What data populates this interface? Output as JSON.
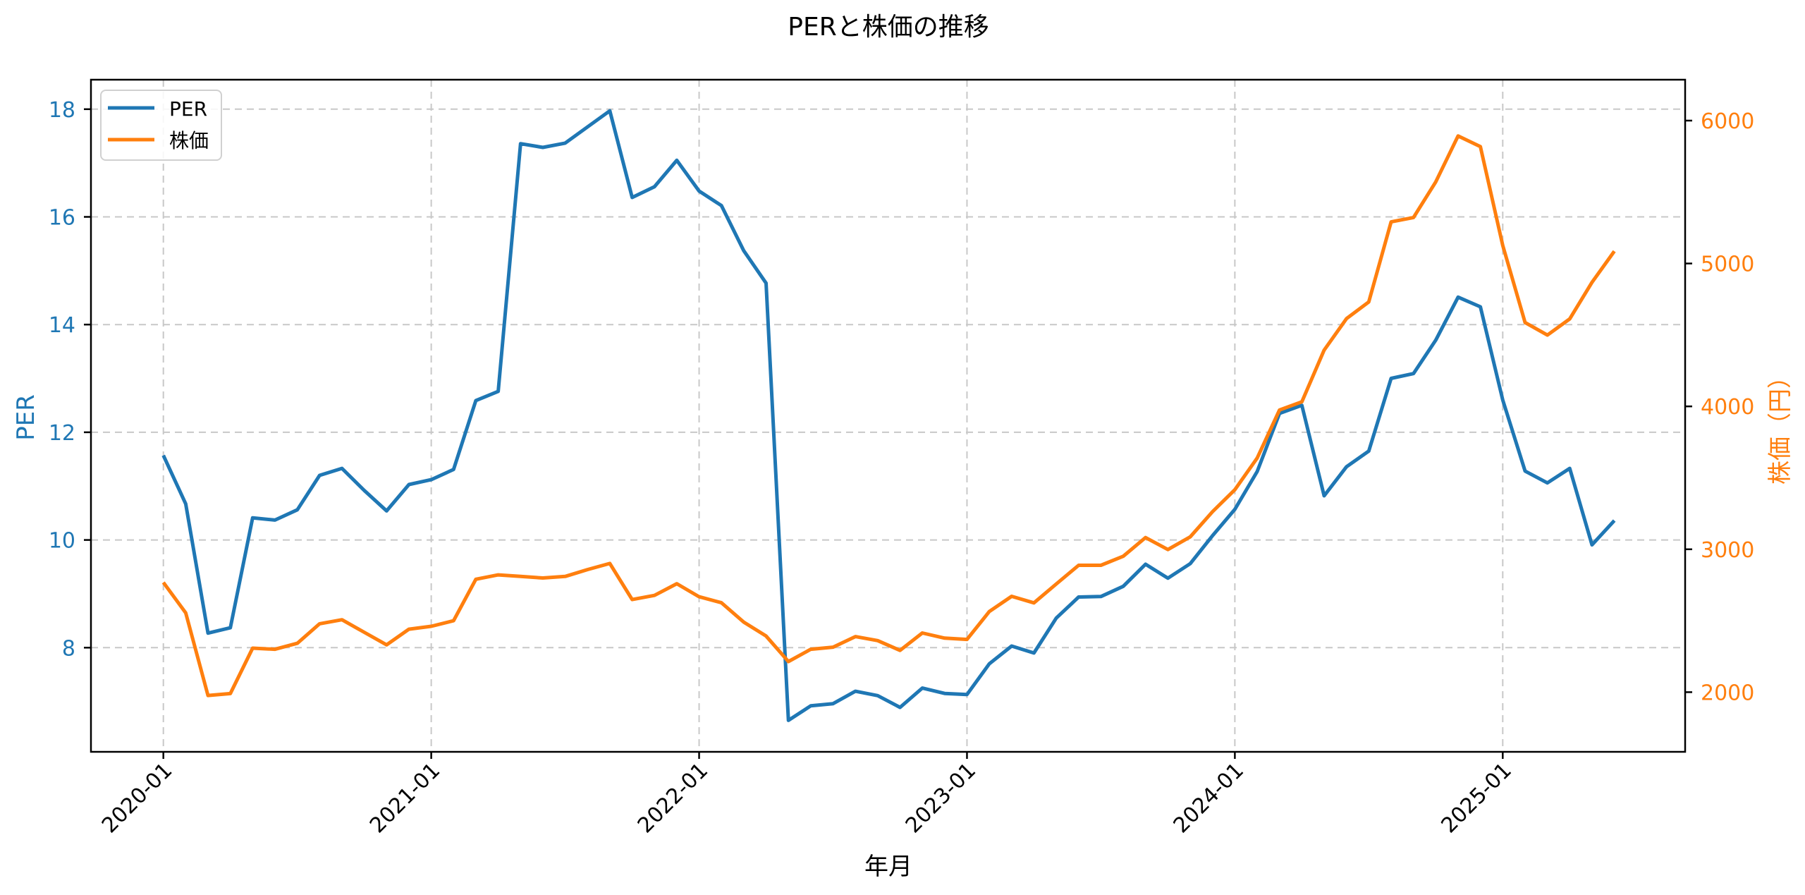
{
  "chart_data": {
    "type": "line",
    "title": "PERと株価の推移",
    "xlabel": "年月",
    "ylabel": "PER",
    "y2label": "株価（円）",
    "x_tick_labels": [
      "2020-01",
      "2021-01",
      "2022-01",
      "2023-01",
      "2024-01",
      "2025-01"
    ],
    "y_ticks": [
      8,
      10,
      12,
      14,
      16,
      18
    ],
    "y2_ticks": [
      2000,
      3000,
      4000,
      5000,
      6000
    ],
    "ylim": [
      6.15,
      18.5
    ],
    "y2lim": [
      1560,
      6290
    ],
    "grid": true,
    "legend_position": "upper left",
    "x": [
      "2020-01",
      "2020-02",
      "2020-03",
      "2020-04",
      "2020-05",
      "2020-06",
      "2020-07",
      "2020-08",
      "2020-09",
      "2020-10",
      "2020-11",
      "2020-12",
      "2021-01",
      "2021-02",
      "2021-03",
      "2021-04",
      "2021-05",
      "2021-06",
      "2021-07",
      "2021-08",
      "2021-09",
      "2021-10",
      "2021-11",
      "2021-12",
      "2022-01",
      "2022-02",
      "2022-03",
      "2022-04",
      "2022-05",
      "2022-06",
      "2022-07",
      "2022-08",
      "2022-09",
      "2022-10",
      "2022-11",
      "2022-12",
      "2023-01",
      "2023-02",
      "2023-03",
      "2023-04",
      "2023-05",
      "2023-06",
      "2023-07",
      "2023-08",
      "2023-09",
      "2023-10",
      "2023-11",
      "2023-12",
      "2024-01",
      "2024-02",
      "2024-03",
      "2024-04",
      "2024-05",
      "2024-06",
      "2024-07",
      "2024-08",
      "2024-09",
      "2024-10",
      "2024-11",
      "2024-12",
      "2025-01",
      "2025-02",
      "2025-03",
      "2025-04",
      "2025-05",
      "2025-06"
    ],
    "series": [
      {
        "name": "PER",
        "axis": "left",
        "color": "#1f77b4",
        "values": [
          11.57,
          10.67,
          8.27,
          8.37,
          10.41,
          10.37,
          10.56,
          11.2,
          11.33,
          10.92,
          10.54,
          11.03,
          11.12,
          11.31,
          12.59,
          12.76,
          17.36,
          17.29,
          17.37,
          17.67,
          17.97,
          16.36,
          16.56,
          17.05,
          16.48,
          16.21,
          15.37,
          14.77,
          6.65,
          6.92,
          6.96,
          7.19,
          7.11,
          6.89,
          7.25,
          7.15,
          7.13,
          7.7,
          8.03,
          7.9,
          8.55,
          8.94,
          8.95,
          9.14,
          9.55,
          9.29,
          9.56,
          10.08,
          10.57,
          11.27,
          12.35,
          12.5,
          10.82,
          11.36,
          11.65,
          13.0,
          13.09,
          13.71,
          14.51,
          14.33,
          12.6,
          11.28,
          11.06,
          11.33,
          9.91,
          10.36
        ]
      },
      {
        "name": "株価",
        "axis": "right",
        "color": "#ff7f0e",
        "values": [
          2768,
          2555,
          1977,
          1990,
          2308,
          2300,
          2342,
          2479,
          2507,
          2419,
          2331,
          2441,
          2461,
          2500,
          2790,
          2821,
          2810,
          2799,
          2810,
          2858,
          2901,
          2648,
          2677,
          2759,
          2668,
          2626,
          2490,
          2393,
          2214,
          2300,
          2315,
          2389,
          2361,
          2292,
          2414,
          2378,
          2369,
          2564,
          2671,
          2625,
          2757,
          2888,
          2888,
          2951,
          3082,
          2998,
          3087,
          3263,
          3417,
          3638,
          3975,
          4032,
          4394,
          4614,
          4731,
          5291,
          5322,
          5571,
          5893,
          5818,
          5127,
          4587,
          4499,
          4612,
          4868,
          5086
        ]
      }
    ]
  },
  "colors": {
    "per": "#1f77b4",
    "price": "#ff7f0e",
    "grid": "#c8c8c8",
    "frame": "#000000"
  },
  "legend": {
    "items": [
      {
        "label": "PER",
        "color": "#1f77b4"
      },
      {
        "label": "株価",
        "color": "#ff7f0e"
      }
    ]
  }
}
